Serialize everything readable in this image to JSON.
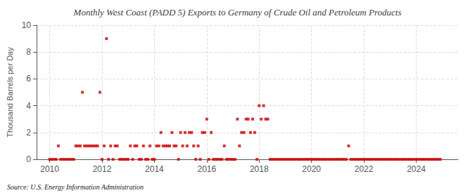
{
  "chart_data": {
    "type": "scatter",
    "title": "Monthly West Coast (PADD 5) Exports to Germany of Crude Oil and Petroleum Products",
    "ylabel": "Thousand Barrels per Day",
    "annotations": [
      "Source: U.S. Energy Information Administration"
    ],
    "color": "#cc0000",
    "marker": "square",
    "grid": true,
    "xlim": [
      2009.5,
      2025.6
    ],
    "xticks": [
      2010,
      2012,
      2014,
      2016,
      2018,
      2020,
      2022,
      2024
    ],
    "ylim": [
      0,
      10
    ],
    "yticks": [
      0,
      2,
      4,
      6,
      8,
      10
    ],
    "x": [
      2010.0,
      2010.08,
      2010.17,
      2010.25,
      2010.33,
      2010.42,
      2010.5,
      2010.58,
      2010.67,
      2010.75,
      2010.83,
      2010.92,
      2011.0,
      2011.08,
      2011.17,
      2011.25,
      2011.33,
      2011.42,
      2011.5,
      2011.58,
      2011.67,
      2011.75,
      2011.83,
      2011.92,
      2012.0,
      2012.08,
      2012.17,
      2012.25,
      2012.33,
      2012.42,
      2012.5,
      2012.58,
      2012.67,
      2012.75,
      2012.83,
      2012.92,
      2013.0,
      2013.08,
      2013.17,
      2013.25,
      2013.33,
      2013.42,
      2013.5,
      2013.58,
      2013.67,
      2013.75,
      2013.83,
      2013.92,
      2014.0,
      2014.08,
      2014.17,
      2014.25,
      2014.33,
      2014.42,
      2014.5,
      2014.58,
      2014.67,
      2014.75,
      2014.83,
      2014.92,
      2015.0,
      2015.08,
      2015.17,
      2015.25,
      2015.33,
      2015.42,
      2015.5,
      2015.58,
      2015.67,
      2015.75,
      2015.83,
      2015.92,
      2016.0,
      2016.08,
      2016.17,
      2016.25,
      2016.33,
      2016.42,
      2016.5,
      2016.58,
      2016.67,
      2016.75,
      2016.83,
      2016.92,
      2017.0,
      2017.08,
      2017.17,
      2017.25,
      2017.33,
      2017.42,
      2017.5,
      2017.58,
      2017.67,
      2017.75,
      2017.83,
      2017.92,
      2018.0,
      2018.08,
      2018.17,
      2018.25,
      2018.33,
      2018.42,
      2018.5,
      2018.58,
      2018.67,
      2018.75,
      2018.83,
      2018.92,
      2019.0,
      2019.08,
      2019.17,
      2019.25,
      2019.33,
      2019.42,
      2019.5,
      2019.58,
      2019.67,
      2019.75,
      2019.83,
      2019.92,
      2020.0,
      2020.08,
      2020.17,
      2020.25,
      2020.33,
      2020.42,
      2020.5,
      2020.58,
      2020.67,
      2020.75,
      2020.83,
      2020.92,
      2021.0,
      2021.08,
      2021.17,
      2021.25,
      2021.33,
      2021.42,
      2021.5,
      2021.58,
      2021.67,
      2021.75,
      2021.83,
      2021.92,
      2022.0,
      2022.08,
      2022.17,
      2022.25,
      2022.33,
      2022.42,
      2022.5,
      2022.58,
      2022.67,
      2022.75,
      2022.83,
      2022.92,
      2023.0,
      2023.08,
      2023.17,
      2023.25,
      2023.33,
      2023.42,
      2023.5,
      2023.58,
      2023.67,
      2023.75,
      2023.83,
      2023.92,
      2024.0,
      2024.08,
      2024.17,
      2024.25,
      2024.33,
      2024.42,
      2024.5,
      2024.58,
      2024.67,
      2024.75,
      2024.83,
      2024.92
    ],
    "values": [
      0,
      0,
      0,
      0,
      1,
      0,
      0,
      0,
      0,
      0,
      0,
      0,
      1,
      1,
      1,
      5,
      1,
      1,
      1,
      1,
      1,
      1,
      1,
      5,
      0,
      1,
      9,
      0,
      1,
      0,
      1,
      1,
      0,
      0,
      0,
      0,
      0,
      1,
      0,
      1,
      1,
      0,
      0,
      1,
      0,
      0,
      1,
      0,
      0,
      1,
      1,
      2,
      1,
      1,
      1,
      1,
      2,
      1,
      1,
      0,
      2,
      1,
      2,
      1,
      2,
      2,
      1,
      0,
      1,
      0,
      2,
      2,
      3,
      0,
      2,
      0,
      0,
      0,
      0,
      0,
      1,
      0,
      0,
      0,
      0,
      0,
      3,
      1,
      2,
      2,
      3,
      3,
      2,
      3,
      2,
      0,
      4,
      3,
      4,
      3,
      3,
      0,
      0,
      0,
      0,
      0,
      0,
      0,
      0,
      0,
      0,
      0,
      0,
      0,
      0,
      0,
      0,
      0,
      0,
      0,
      0,
      0,
      0,
      0,
      0,
      0,
      0,
      0,
      0,
      0,
      0,
      0,
      0,
      0,
      0,
      0,
      0,
      1,
      0,
      0,
      0,
      0,
      0,
      0,
      0,
      0,
      0,
      0,
      0,
      0,
      0,
      0,
      0,
      0,
      0,
      0,
      0,
      0,
      0,
      0,
      0,
      0,
      0,
      0,
      0,
      0,
      0,
      0,
      0,
      0,
      0,
      0,
      0,
      0,
      0,
      0,
      0,
      0,
      0,
      0
    ]
  }
}
